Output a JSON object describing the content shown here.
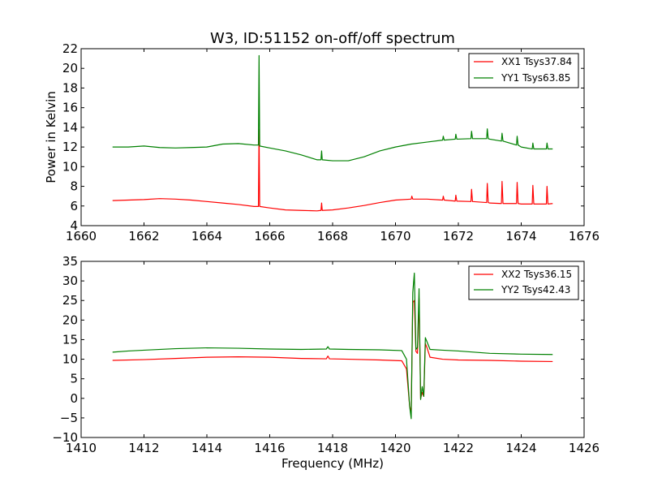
{
  "chart_data": [
    {
      "type": "line",
      "title": "W3, ID:51152 on-off/off spectrum",
      "xlabel": "",
      "ylabel": "Power in Kelvin",
      "xlim": [
        1660,
        1676
      ],
      "ylim": [
        4,
        22
      ],
      "xticks": [
        1660,
        1662,
        1664,
        1666,
        1668,
        1670,
        1672,
        1674,
        1676
      ],
      "yticks": [
        4,
        6,
        8,
        10,
        12,
        14,
        16,
        18,
        20,
        22
      ],
      "grid": false,
      "legend_position": "top-right",
      "series": [
        {
          "name": "XX1 Tsys37.84",
          "color": "#ff0000",
          "points": [
            [
              1661.0,
              6.55
            ],
            [
              1661.5,
              6.6
            ],
            [
              1662.0,
              6.65
            ],
            [
              1662.5,
              6.75
            ],
            [
              1663.0,
              6.7
            ],
            [
              1663.5,
              6.6
            ],
            [
              1664.0,
              6.45
            ],
            [
              1664.5,
              6.3
            ],
            [
              1665.0,
              6.15
            ],
            [
              1665.5,
              5.95
            ],
            [
              1665.64,
              5.95
            ],
            [
              1665.66,
              13.8
            ],
            [
              1665.68,
              5.95
            ],
            [
              1666.0,
              5.8
            ],
            [
              1666.5,
              5.6
            ],
            [
              1667.0,
              5.55
            ],
            [
              1667.5,
              5.5
            ],
            [
              1667.63,
              5.55
            ],
            [
              1667.65,
              6.3
            ],
            [
              1667.67,
              5.55
            ],
            [
              1668.0,
              5.6
            ],
            [
              1668.5,
              5.8
            ],
            [
              1669.0,
              6.05
            ],
            [
              1669.5,
              6.35
            ],
            [
              1670.0,
              6.6
            ],
            [
              1670.5,
              6.7
            ],
            [
              1670.52,
              7.0
            ],
            [
              1670.55,
              6.7
            ],
            [
              1671.0,
              6.7
            ],
            [
              1671.5,
              6.6
            ],
            [
              1671.52,
              7.0
            ],
            [
              1671.55,
              6.6
            ],
            [
              1671.9,
              6.5
            ],
            [
              1671.92,
              7.1
            ],
            [
              1671.95,
              6.5
            ],
            [
              1672.4,
              6.45
            ],
            [
              1672.42,
              7.7
            ],
            [
              1672.45,
              6.45
            ],
            [
              1672.9,
              6.35
            ],
            [
              1672.92,
              8.3
            ],
            [
              1672.95,
              6.35
            ],
            [
              1673.0,
              6.3
            ],
            [
              1673.37,
              6.25
            ],
            [
              1673.39,
              8.5
            ],
            [
              1673.42,
              6.25
            ],
            [
              1673.85,
              6.25
            ],
            [
              1673.87,
              8.4
            ],
            [
              1673.9,
              6.25
            ],
            [
              1674.0,
              6.2
            ],
            [
              1674.35,
              6.2
            ],
            [
              1674.37,
              8.1
            ],
            [
              1674.4,
              6.2
            ],
            [
              1674.8,
              6.2
            ],
            [
              1674.82,
              8.0
            ],
            [
              1674.85,
              6.2
            ],
            [
              1675.0,
              6.25
            ]
          ]
        },
        {
          "name": "YY1 Tsys63.85",
          "color": "#008000",
          "points": [
            [
              1661.0,
              12.0
            ],
            [
              1661.5,
              12.0
            ],
            [
              1662.0,
              12.1
            ],
            [
              1662.5,
              11.95
            ],
            [
              1663.0,
              11.9
            ],
            [
              1663.5,
              11.95
            ],
            [
              1664.0,
              12.0
            ],
            [
              1664.5,
              12.3
            ],
            [
              1665.0,
              12.35
            ],
            [
              1665.5,
              12.2
            ],
            [
              1665.64,
              12.2
            ],
            [
              1665.66,
              21.3
            ],
            [
              1665.68,
              12.1
            ],
            [
              1666.0,
              11.9
            ],
            [
              1666.5,
              11.6
            ],
            [
              1667.0,
              11.2
            ],
            [
              1667.5,
              10.7
            ],
            [
              1667.63,
              10.7
            ],
            [
              1667.65,
              11.6
            ],
            [
              1667.67,
              10.7
            ],
            [
              1668.0,
              10.6
            ],
            [
              1668.5,
              10.6
            ],
            [
              1669.0,
              11.0
            ],
            [
              1669.5,
              11.6
            ],
            [
              1670.0,
              12.0
            ],
            [
              1670.5,
              12.3
            ],
            [
              1671.0,
              12.5
            ],
            [
              1671.5,
              12.7
            ],
            [
              1671.52,
              13.1
            ],
            [
              1671.55,
              12.7
            ],
            [
              1671.9,
              12.8
            ],
            [
              1671.92,
              13.3
            ],
            [
              1671.95,
              12.8
            ],
            [
              1672.4,
              12.85
            ],
            [
              1672.42,
              13.6
            ],
            [
              1672.45,
              12.85
            ],
            [
              1672.9,
              12.85
            ],
            [
              1672.92,
              13.85
            ],
            [
              1672.95,
              12.85
            ],
            [
              1673.0,
              12.8
            ],
            [
              1673.37,
              12.6
            ],
            [
              1673.39,
              13.4
            ],
            [
              1673.42,
              12.6
            ],
            [
              1673.85,
              12.2
            ],
            [
              1673.87,
              13.1
            ],
            [
              1673.9,
              12.2
            ],
            [
              1674.0,
              12.0
            ],
            [
              1674.35,
              11.8
            ],
            [
              1674.37,
              12.4
            ],
            [
              1674.4,
              11.8
            ],
            [
              1674.8,
              11.8
            ],
            [
              1674.82,
              12.4
            ],
            [
              1674.85,
              11.8
            ],
            [
              1675.0,
              11.8
            ]
          ]
        }
      ]
    },
    {
      "type": "line",
      "title": "",
      "xlabel": "Frequency (MHz)",
      "ylabel": "",
      "xlim": [
        1410,
        1426
      ],
      "ylim": [
        -10,
        35
      ],
      "xticks": [
        1410,
        1412,
        1414,
        1416,
        1418,
        1420,
        1422,
        1424,
        1426
      ],
      "yticks": [
        -10,
        -5,
        0,
        5,
        10,
        15,
        20,
        25,
        30,
        35
      ],
      "grid": false,
      "legend_position": "top-right",
      "series": [
        {
          "name": "XX2 Tsys36.15",
          "color": "#ff0000",
          "points": [
            [
              1411.0,
              9.7
            ],
            [
              1412.0,
              9.9
            ],
            [
              1413.0,
              10.2
            ],
            [
              1414.0,
              10.5
            ],
            [
              1415.0,
              10.6
            ],
            [
              1416.0,
              10.5
            ],
            [
              1417.0,
              10.2
            ],
            [
              1417.8,
              10.1
            ],
            [
              1417.85,
              10.8
            ],
            [
              1417.9,
              10.1
            ],
            [
              1418.5,
              10.0
            ],
            [
              1419.5,
              9.8
            ],
            [
              1420.2,
              9.6
            ],
            [
              1420.35,
              7.5
            ],
            [
              1420.45,
              -2.0
            ],
            [
              1420.5,
              -3.5
            ],
            [
              1420.55,
              24.5
            ],
            [
              1420.6,
              25.0
            ],
            [
              1420.65,
              12.0
            ],
            [
              1420.7,
              11.5
            ],
            [
              1420.75,
              25.5
            ],
            [
              1420.8,
              0.0
            ],
            [
              1420.85,
              1.5
            ],
            [
              1420.9,
              0.5
            ],
            [
              1420.95,
              14.0
            ],
            [
              1421.0,
              13.0
            ],
            [
              1421.1,
              10.5
            ],
            [
              1421.5,
              10.0
            ],
            [
              1422.0,
              9.8
            ],
            [
              1423.0,
              9.7
            ],
            [
              1424.0,
              9.5
            ],
            [
              1425.0,
              9.4
            ]
          ]
        },
        {
          "name": "YY2 Tsys42.43",
          "color": "#008000",
          "points": [
            [
              1411.0,
              11.8
            ],
            [
              1411.5,
              12.1
            ],
            [
              1412.0,
              12.3
            ],
            [
              1413.0,
              12.7
            ],
            [
              1414.0,
              12.9
            ],
            [
              1415.0,
              12.8
            ],
            [
              1416.0,
              12.6
            ],
            [
              1417.0,
              12.5
            ],
            [
              1417.8,
              12.6
            ],
            [
              1417.85,
              13.2
            ],
            [
              1417.9,
              12.6
            ],
            [
              1418.5,
              12.5
            ],
            [
              1419.5,
              12.4
            ],
            [
              1420.2,
              12.2
            ],
            [
              1420.35,
              10.0
            ],
            [
              1420.45,
              -2.0
            ],
            [
              1420.5,
              -5.2
            ],
            [
              1420.55,
              27.0
            ],
            [
              1420.6,
              32.0
            ],
            [
              1420.65,
              12.5
            ],
            [
              1420.7,
              13.0
            ],
            [
              1420.75,
              28.0
            ],
            [
              1420.8,
              -0.3
            ],
            [
              1420.85,
              3.0
            ],
            [
              1420.9,
              0.5
            ],
            [
              1420.95,
              15.5
            ],
            [
              1421.0,
              14.5
            ],
            [
              1421.1,
              12.5
            ],
            [
              1421.5,
              12.3
            ],
            [
              1422.0,
              12.1
            ],
            [
              1423.0,
              11.5
            ],
            [
              1424.0,
              11.3
            ],
            [
              1425.0,
              11.2
            ]
          ]
        }
      ]
    }
  ]
}
